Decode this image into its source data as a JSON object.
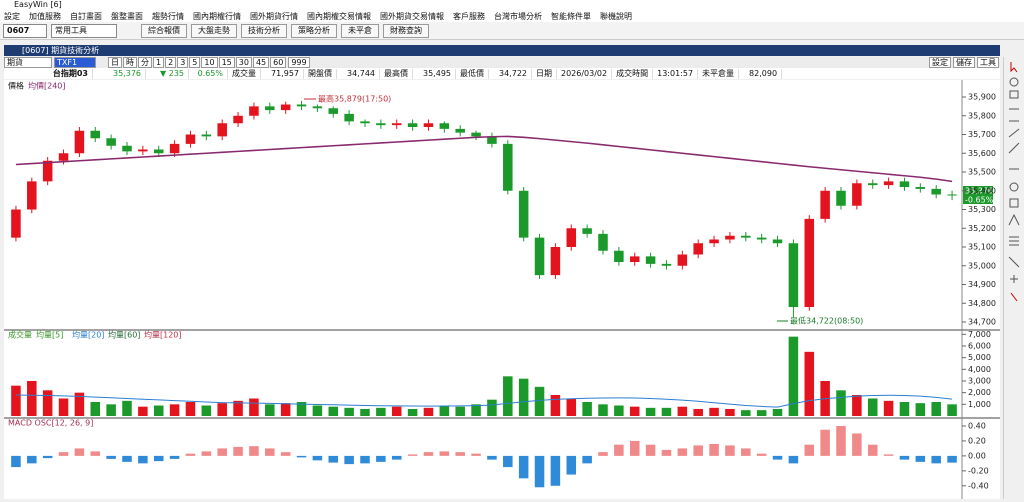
{
  "app": {
    "title": "EasyWin [6]",
    "menu": [
      "設定",
      "加值服務",
      "自訂畫面",
      "盤整畫面",
      "趨勢行情",
      "國內期權行情",
      "國外期貨行情",
      "國內期權交易情報",
      "國外期貨交易情報",
      "客戶服務",
      "台灣市場分析",
      "智能條件單",
      "聯機說明"
    ],
    "toolbar": {
      "code": "0607",
      "combo": "常用工具",
      "buttons": [
        "綜合報價",
        "大盤走勢",
        "技術分析",
        "策略分析",
        "未平倉",
        "財務查詢"
      ]
    }
  },
  "window": {
    "title": "[0607] 期貨技術分析",
    "market": "期貨",
    "symbol": "TXF1",
    "periods": [
      "日",
      "時",
      "分",
      "1",
      "2",
      "3",
      "5",
      "10",
      "15",
      "30",
      "45",
      "60"
    ],
    "count": "999",
    "right_buttons": [
      "設定",
      "儲存",
      "工具"
    ]
  },
  "quote": {
    "name": "台指期03",
    "last": "35,376",
    "change": "▼ 235",
    "change_pct": "0.65%",
    "fields": [
      {
        "label": "成交量",
        "value": "71,957"
      },
      {
        "label": "開盤價",
        "value": "34,744"
      },
      {
        "label": "最高價",
        "value": "35,495"
      },
      {
        "label": "最低價",
        "value": "34,722"
      },
      {
        "label": "日期",
        "value": "2026/03/02"
      },
      {
        "label": "成交時間",
        "value": "13:01:57"
      },
      {
        "label": "未平倉量",
        "value": "82,090"
      }
    ]
  },
  "chart_data": [
    {
      "type": "candlestick",
      "title": "價格",
      "up_color": "#e3141e",
      "down_color": "#1b9a2b",
      "ylim": [
        34668,
        35980
      ],
      "yticks": [
        {
          "value": 34700,
          "label": "34,700"
        },
        {
          "value": 34800,
          "label": "34,800"
        },
        {
          "value": 34900,
          "label": "34,900"
        },
        {
          "value": 35000,
          "label": "35,000"
        },
        {
          "value": 35100,
          "label": "35,100"
        },
        {
          "value": 35200,
          "label": "35,200"
        },
        {
          "value": 35300,
          "label": "35,300"
        },
        {
          "value": 35400,
          "label": "35,400"
        },
        {
          "value": 35500,
          "label": "35,500"
        },
        {
          "value": 35600,
          "label": "35,600"
        },
        {
          "value": 35700,
          "label": "35,700"
        },
        {
          "value": 35800,
          "label": "35,800"
        },
        {
          "value": 35900,
          "label": "35,900"
        }
      ],
      "candles": [
        [
          35150,
          35320,
          35130,
          35300
        ],
        [
          35300,
          35470,
          35280,
          35450
        ],
        [
          35450,
          35580,
          35430,
          35560
        ],
        [
          35560,
          35620,
          35540,
          35600
        ],
        [
          35600,
          35740,
          35580,
          35720
        ],
        [
          35720,
          35740,
          35660,
          35680
        ],
        [
          35680,
          35700,
          35620,
          35640
        ],
        [
          35640,
          35660,
          35590,
          35610
        ],
        [
          35610,
          35640,
          35590,
          35620
        ],
        [
          35620,
          35640,
          35580,
          35600
        ],
        [
          35600,
          35670,
          35580,
          35650
        ],
        [
          35650,
          35720,
          35630,
          35700
        ],
        [
          35700,
          35720,
          35670,
          35690
        ],
        [
          35690,
          35780,
          35670,
          35760
        ],
        [
          35760,
          35820,
          35740,
          35800
        ],
        [
          35800,
          35870,
          35780,
          35850
        ],
        [
          35850,
          35870,
          35810,
          35830
        ],
        [
          35830,
          35875,
          35810,
          35860
        ],
        [
          35860,
          35879,
          35830,
          35850
        ],
        [
          35850,
          35860,
          35820,
          35840
        ],
        [
          35840,
          35850,
          35790,
          35810
        ],
        [
          35810,
          35830,
          35750,
          35770
        ],
        [
          35770,
          35780,
          35740,
          35760
        ],
        [
          35760,
          35780,
          35730,
          35750
        ],
        [
          35750,
          35780,
          35730,
          35760
        ],
        [
          35760,
          35780,
          35720,
          35740
        ],
        [
          35740,
          35780,
          35720,
          35760
        ],
        [
          35760,
          35770,
          35710,
          35730
        ],
        [
          35730,
          35750,
          35690,
          35710
        ],
        [
          35710,
          35720,
          35670,
          35690
        ],
        [
          35690,
          35710,
          35630,
          35650
        ],
        [
          35650,
          35670,
          35380,
          35400
        ],
        [
          35400,
          35420,
          35130,
          35150
        ],
        [
          35150,
          35170,
          34930,
          34950
        ],
        [
          34950,
          35120,
          34930,
          35100
        ],
        [
          35100,
          35220,
          35080,
          35200
        ],
        [
          35200,
          35220,
          35150,
          35170
        ],
        [
          35170,
          35190,
          35060,
          35080
        ],
        [
          35080,
          35100,
          35000,
          35020
        ],
        [
          35020,
          35070,
          35000,
          35050
        ],
        [
          35050,
          35070,
          34990,
          35010
        ],
        [
          35010,
          35030,
          34980,
          35000
        ],
        [
          35000,
          35080,
          34980,
          35060
        ],
        [
          35060,
          35140,
          35040,
          35120
        ],
        [
          35120,
          35160,
          35100,
          35140
        ],
        [
          35140,
          35180,
          35120,
          35160
        ],
        [
          35160,
          35180,
          35130,
          35150
        ],
        [
          35150,
          35170,
          35120,
          35140
        ],
        [
          35140,
          35160,
          35100,
          35120
        ],
        [
          35120,
          35140,
          34722,
          34780
        ],
        [
          34780,
          35270,
          34760,
          35250
        ],
        [
          35250,
          35420,
          35230,
          35400
        ],
        [
          35400,
          35420,
          35300,
          35320
        ],
        [
          35320,
          35460,
          35300,
          35440
        ],
        [
          35440,
          35460,
          35410,
          35430
        ],
        [
          35430,
          35470,
          35410,
          35450
        ],
        [
          35450,
          35470,
          35400,
          35420
        ],
        [
          35420,
          35440,
          35390,
          35410
        ],
        [
          35410,
          35430,
          35360,
          35380
        ],
        [
          35380,
          35400,
          35350,
          35376
        ]
      ],
      "series": [
        {
          "name": "均價[240]",
          "color": "#8a2a6e",
          "values": [
            35540,
            35545,
            35550,
            35555,
            35560,
            35565,
            35570,
            35575,
            35580,
            35585,
            35590,
            35595,
            35600,
            35605,
            35610,
            35615,
            35620,
            35625,
            35630,
            35635,
            35640,
            35645,
            35650,
            35655,
            35660,
            35665,
            35670,
            35675,
            35680,
            35685,
            35688,
            35690,
            35685,
            35678,
            35670,
            35662,
            35654,
            35645,
            35636,
            35627,
            35618,
            35609,
            35600,
            35591,
            35582,
            35573,
            35564,
            35555,
            35546,
            35537,
            35528,
            35520,
            35512,
            35504,
            35496,
            35488,
            35480,
            35472,
            35462,
            35450
          ]
        }
      ],
      "annotations": [
        "最高35,879(17:50)",
        "最低34,722(08:50)"
      ],
      "last_label": "35,376",
      "change_label": "-0.65%"
    },
    {
      "type": "bar",
      "title": "成交量",
      "up_color": "#e3141e",
      "down_color": "#1b9a2b",
      "indicator_labels": [
        "均量[5]",
        "均量[20]",
        "均量[60]",
        "均量[120]"
      ],
      "indicator_colors": [
        "#3a9a2a",
        "#2a7fd0",
        "#2a6a3a",
        "#c0304a"
      ],
      "ylim": [
        0,
        7200
      ],
      "yticks": [
        {
          "value": 1000,
          "label": "1,000"
        },
        {
          "value": 2000,
          "label": "2,000"
        },
        {
          "value": 3000,
          "label": "3,000"
        },
        {
          "value": 4000,
          "label": "4,000"
        },
        {
          "value": 5000,
          "label": "5,000"
        },
        {
          "value": 6000,
          "label": "6,000"
        },
        {
          "value": 7000,
          "label": "7,000"
        }
      ],
      "values": [
        2600,
        3000,
        2200,
        1500,
        2000,
        1200,
        1000,
        1300,
        800,
        900,
        1000,
        1200,
        900,
        1100,
        1300,
        1500,
        1000,
        1100,
        1200,
        900,
        800,
        700,
        600,
        700,
        800,
        600,
        700,
        900,
        800,
        1000,
        1400,
        3400,
        3200,
        2500,
        1800,
        1500,
        1200,
        1000,
        900,
        800,
        700,
        700,
        800,
        600,
        700,
        600,
        500,
        500,
        600,
        6800,
        5500,
        3000,
        2200,
        1800,
        1500,
        1300,
        1200,
        1100,
        1200,
        1000
      ],
      "ma_line": {
        "color": "#2a7fd0",
        "values": [
          1800,
          1780,
          1760,
          1720,
          1680,
          1620,
          1560,
          1500,
          1440,
          1380,
          1320,
          1260,
          1200,
          1150,
          1120,
          1100,
          1080,
          1050,
          1020,
          990,
          960,
          930,
          900,
          880,
          870,
          860,
          850,
          860,
          870,
          890,
          940,
          1080,
          1220,
          1340,
          1420,
          1480,
          1520,
          1540,
          1550,
          1540,
          1500,
          1440,
          1360,
          1260,
          1140,
          1020,
          900,
          820,
          760,
          1060,
          1320,
          1480,
          1600,
          1700,
          1760,
          1780,
          1760,
          1700,
          1600,
          1450
        ]
      }
    },
    {
      "type": "bar",
      "title": "MACD OSC[12, 26, 9]",
      "up_color": "#f08a8a",
      "down_color": "#2f8ad8",
      "ylim": [
        -0.55,
        0.48
      ],
      "yticks": [
        {
          "value": -0.4,
          "label": "-0.40"
        },
        {
          "value": -0.2,
          "label": "-0.20"
        },
        {
          "value": 0,
          "label": "0.00"
        },
        {
          "value": 0.2,
          "label": "0.20"
        },
        {
          "value": 0.4,
          "label": "0.40"
        }
      ],
      "values": [
        -0.15,
        -0.1,
        -0.03,
        0.05,
        0.1,
        0.06,
        -0.04,
        -0.08,
        -0.1,
        -0.07,
        -0.04,
        0.03,
        0.06,
        0.1,
        0.12,
        0.13,
        0.1,
        0.05,
        -0.02,
        -0.06,
        -0.09,
        -0.11,
        -0.1,
        -0.08,
        -0.05,
        0.02,
        0.05,
        0.06,
        0.05,
        0.03,
        -0.05,
        -0.15,
        -0.3,
        -0.42,
        -0.4,
        -0.25,
        -0.1,
        0.05,
        0.15,
        0.2,
        0.15,
        0.08,
        0.1,
        0.14,
        0.16,
        0.14,
        0.1,
        0.03,
        -0.05,
        -0.1,
        0.15,
        0.35,
        0.4,
        0.3,
        0.15,
        0.02,
        -0.05,
        -0.08,
        -0.1,
        -0.09
      ]
    }
  ]
}
